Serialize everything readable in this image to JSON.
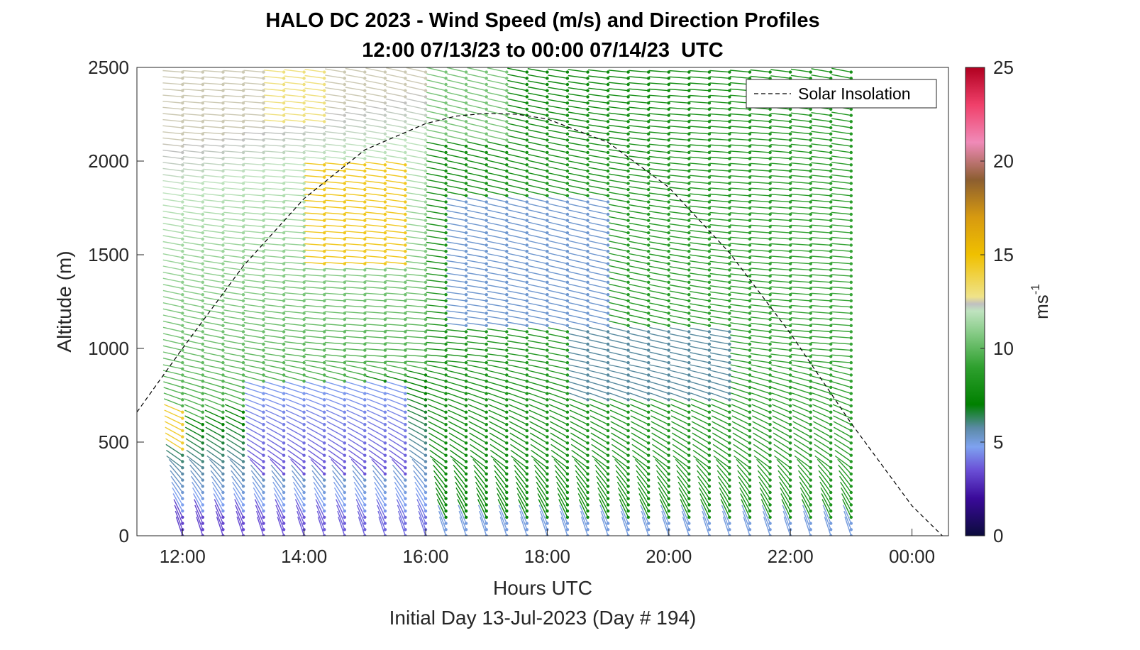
{
  "chart_data": {
    "type": "barbs",
    "title": "HALO DC 2023 - Wind Speed (m/s) and Direction Profiles",
    "subtitle": "12:00 07/13/23 to 00:00 07/14/23  UTC",
    "xlabel": "Hours UTC",
    "xlabel2": "Initial Day 13-Jul-2023 (Day # 194)",
    "ylabel": "Altitude (m)",
    "xlim": [
      11.25,
      24.6
    ],
    "ylim": [
      0,
      2500
    ],
    "x_ticks": [
      12,
      14,
      16,
      18,
      20,
      22,
      24
    ],
    "x_tick_labels": [
      "12:00",
      "14:00",
      "16:00",
      "18:00",
      "20:00",
      "22:00",
      "00:00"
    ],
    "y_ticks": [
      0,
      500,
      1000,
      1500,
      2000,
      2500
    ],
    "y_tick_labels": [
      "0",
      "500",
      "1000",
      "1500",
      "2000",
      "2500"
    ],
    "colorbar": {
      "label": "ms",
      "label_superscript": "-1",
      "range": [
        0,
        25
      ],
      "ticks": [
        0,
        5,
        10,
        15,
        20,
        25
      ],
      "tick_labels": [
        "0",
        "5",
        "10",
        "15",
        "20",
        "25"
      ]
    },
    "legend": {
      "entries": [
        "Solar Insolation"
      ],
      "placement": "top-right"
    },
    "solar_insolation": {
      "style": "dashed",
      "x": [
        11.25,
        12.0,
        13.0,
        14.0,
        15.0,
        16.0,
        16.5,
        17.0,
        17.5,
        18.0,
        19.0,
        20.0,
        21.0,
        22.0,
        23.0,
        24.0,
        24.5
      ],
      "y": [
        660,
        1000,
        1440,
        1800,
        2060,
        2200,
        2240,
        2255,
        2250,
        2225,
        2100,
        1860,
        1510,
        1080,
        600,
        160,
        0
      ]
    },
    "profiles": {
      "time_start": 12.0,
      "time_end": 23.0,
      "time_step": 0.3333,
      "alt_min": 0,
      "alt_max": 2500,
      "alt_step": 33
    },
    "wind_field_summary": [
      {
        "time": 12.0,
        "speed_surface": 3.5,
        "speed_500m": 14.0,
        "speed_2000m": 10.0
      },
      {
        "time": 14.0,
        "speed_surface": 3.0,
        "speed_500m": 5.5,
        "speed_1500m": 12.0,
        "speed_2000m": 11.0
      },
      {
        "time": 15.3,
        "speed_surface": 3.0,
        "speed_700m": 3.5,
        "speed_1800m": 14.5
      },
      {
        "time": 17.5,
        "speed_surface": 5.5,
        "speed_1600m": 5.0,
        "speed_2000m": 8.0
      },
      {
        "time": 20.0,
        "speed_surface": 6.0,
        "speed_1500m": 8.0,
        "speed_2000m": 7.5
      },
      {
        "time": 23.0,
        "speed_surface": 7.0,
        "speed_1000m": 9.0,
        "speed_2500m": 7.0
      }
    ]
  }
}
